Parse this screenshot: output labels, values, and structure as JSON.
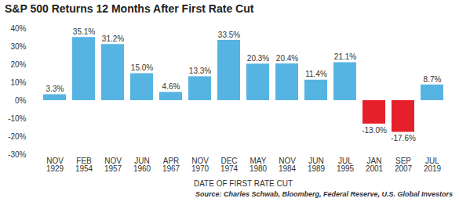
{
  "chart_data": {
    "type": "bar",
    "title": "S&P 500 Returns 12 Months After First Rate Cut",
    "xlabel": "DATE OF FIRST RATE CUT",
    "source": "Source: Charles Schwab, Bloomberg, Federal Reserve, U.S. Global Investors",
    "categories": [
      "NOV\n1929",
      "FEB\n1954",
      "NOV\n1957",
      "JUN\n1960",
      "APR\n1967",
      "NOV\n1970",
      "DEC\n1974",
      "MAY\n1980",
      "NOV\n1984",
      "JUN\n1989",
      "JUL\n1995",
      "JAN\n2001",
      "SEP\n2007",
      "JUL\n2019"
    ],
    "values": [
      3.3,
      35.1,
      31.2,
      15.0,
      4.6,
      13.3,
      33.5,
      20.3,
      20.4,
      11.4,
      21.1,
      -13.0,
      -17.6,
      8.7
    ],
    "value_labels": [
      "3.3%",
      "35.1%",
      "31.2%",
      "15.0%",
      "4.6%",
      "13.3%",
      "33.5%",
      "20.3%",
      "20.4%",
      "11.4%",
      "21.1%",
      "-13.0%",
      "-17.6%",
      "8.7%"
    ],
    "colors": [
      "#56b4e3",
      "#56b4e3",
      "#56b4e3",
      "#56b4e3",
      "#56b4e3",
      "#56b4e3",
      "#56b4e3",
      "#56b4e3",
      "#56b4e3",
      "#56b4e3",
      "#56b4e3",
      "#e5202a",
      "#e5202a",
      "#56b4e3"
    ],
    "ylim": [
      -30,
      40
    ],
    "yticks": [
      {
        "value": -30,
        "label": "-30%"
      },
      {
        "value": -20,
        "label": "-20%"
      },
      {
        "value": -10,
        "label": "-10%"
      },
      {
        "value": 0,
        "label": "0%"
      },
      {
        "value": 10,
        "label": "10%"
      },
      {
        "value": 20,
        "label": "20%"
      },
      {
        "value": 30,
        "label": "30%"
      },
      {
        "value": 40,
        "label": "40%"
      }
    ],
    "grid": false,
    "data_labels": true
  }
}
